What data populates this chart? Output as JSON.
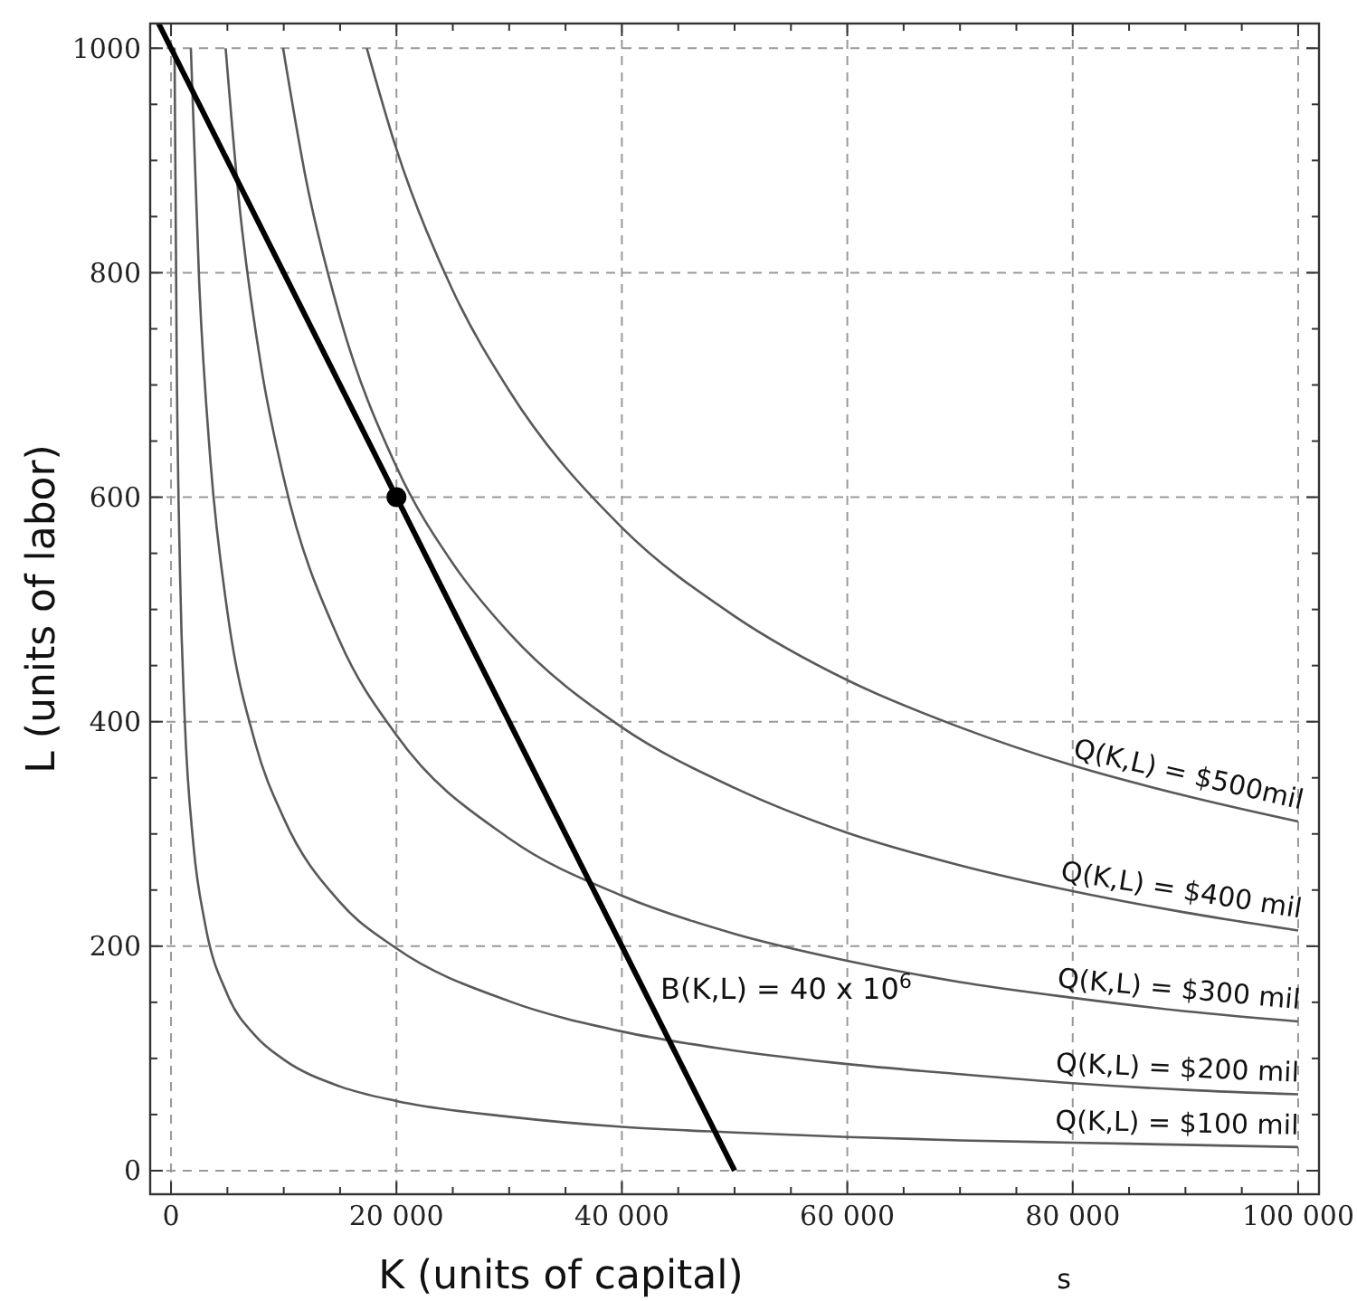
{
  "chart_data": {
    "type": "line",
    "xlabel": "K (units of capital)",
    "ylabel": "L (units of labor)",
    "xlim": [
      -1850,
      101850
    ],
    "ylim": [
      -21,
      1022
    ],
    "xticks": [
      {
        "value": 0,
        "label": "0"
      },
      {
        "value": 5000,
        "label": null
      },
      {
        "value": 10000,
        "label": null
      },
      {
        "value": 15000,
        "label": null
      },
      {
        "value": 20000,
        "label": "20 000"
      },
      {
        "value": 25000,
        "label": null
      },
      {
        "value": 30000,
        "label": null
      },
      {
        "value": 35000,
        "label": null
      },
      {
        "value": 40000,
        "label": "40 000"
      },
      {
        "value": 45000,
        "label": null
      },
      {
        "value": 50000,
        "label": null
      },
      {
        "value": 55000,
        "label": null
      },
      {
        "value": 60000,
        "label": "60 000"
      },
      {
        "value": 65000,
        "label": null
      },
      {
        "value": 70000,
        "label": null
      },
      {
        "value": 75000,
        "label": null
      },
      {
        "value": 80000,
        "label": "80 000"
      },
      {
        "value": 85000,
        "label": null
      },
      {
        "value": 90000,
        "label": null
      },
      {
        "value": 95000,
        "label": null
      },
      {
        "value": 100000,
        "label": "100 000"
      }
    ],
    "yticks": [
      0,
      {
        "value": 50,
        "label": null
      },
      {
        "value": 100,
        "label": null
      },
      {
        "value": 150,
        "label": null
      },
      200,
      {
        "value": 250,
        "label": null
      },
      {
        "value": 300,
        "label": null
      },
      {
        "value": 350,
        "label": null
      },
      400,
      {
        "value": 450,
        "label": null
      },
      {
        "value": 500,
        "label": null
      },
      {
        "value": 550,
        "label": null
      },
      600,
      {
        "value": 650,
        "label": null
      },
      {
        "value": 700,
        "label": null
      },
      {
        "value": 750,
        "label": null
      },
      800,
      {
        "value": 850,
        "label": null
      },
      {
        "value": 900,
        "label": null
      },
      {
        "value": 950,
        "label": null
      },
      1000
    ],
    "grid": true,
    "marker": "none",
    "series": [
      {
        "name": "Q(K,L) = $500mil",
        "color": "#595959",
        "x": [
          17370,
          20000,
          25000,
          30000,
          40000,
          50000,
          60000,
          70000,
          80000,
          90000,
          100000
        ],
        "values": [
          1000,
          910,
          784,
          695,
          573,
          494,
          437,
          395,
          361,
          334,
          311
        ]
      },
      {
        "name": "Q(K,L) = $400 mil",
        "color": "#595959",
        "x": [
          9942,
          12000,
          15000,
          20000,
          25000,
          30000,
          40000,
          50000,
          60000,
          70000,
          80000,
          90000,
          100000
        ],
        "values": [
          1000,
          882,
          760,
          627,
          541,
          479,
          395,
          341,
          301,
          272,
          249,
          230,
          214
        ]
      },
      {
        "name": "Q(K,L) = $300 mil",
        "color": "#595959",
        "x": [
          4844,
          6000,
          8000,
          10000,
          15000,
          20000,
          30000,
          40000,
          50000,
          60000,
          70000,
          80000,
          90000,
          100000
        ],
        "values": [
          1000,
          867,
          716,
          617,
          471,
          388,
          296,
          245,
          211,
          187,
          168,
          154,
          142,
          133
        ]
      },
      {
        "name": "Q(K,L) = $200 mil",
        "color": "#595959",
        "x": [
          1758,
          2500,
          3500,
          5000,
          7500,
          10000,
          15000,
          20000,
          30000,
          40000,
          50000,
          60000,
          70000,
          80000,
          90000,
          100000
        ],
        "values": [
          1000,
          791,
          632,
          498,
          380,
          314,
          239,
          198,
          151,
          124,
          107,
          95,
          86,
          78,
          72,
          68
        ]
      },
      {
        "name": "Q(K,L) = $100 mil",
        "color": "#595959",
        "x": [
          311,
          500,
          800,
          1200,
          2000,
          3000,
          5000,
          7500,
          10000,
          15000,
          20000,
          30000,
          40000,
          50000,
          60000,
          70000,
          80000,
          90000,
          100000
        ],
        "values": [
          1000,
          728,
          532,
          406,
          289,
          221,
          157,
          120,
          99,
          75,
          62,
          48,
          39,
          34,
          30,
          27,
          25,
          23,
          21
        ]
      },
      {
        "name": "B(K,L) = 40 x 10$^{6}$",
        "color": "#000000",
        "x": [
          -1100,
          50000
        ],
        "values": [
          1022,
          0
        ]
      },
      {
        "type": "scatter",
        "marker": "circle",
        "color": "#000000",
        "x": [
          20000
        ],
        "values": [
          600
        ]
      }
    ],
    "annotations": [
      "s"
    ]
  }
}
